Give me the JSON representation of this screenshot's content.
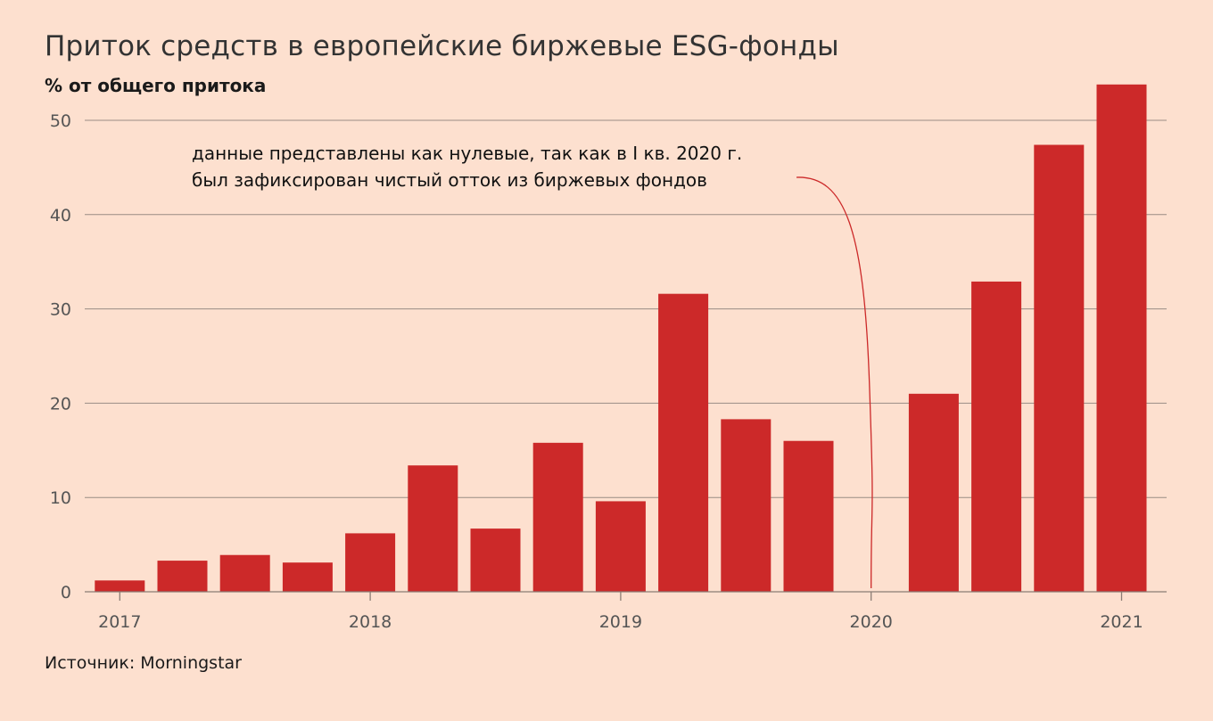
{
  "chart_data": {
    "type": "bar",
    "title": "Приток средств в европейские биржевые ESG-фонды",
    "subtitle": "% от общего притока",
    "source": "Источник: Morningstar",
    "ylim": [
      0,
      50
    ],
    "y_ticks": [
      0,
      10,
      20,
      30,
      40,
      50
    ],
    "grid": true,
    "x_year_labels": [
      "2017",
      "2018",
      "2019",
      "2020",
      "2021"
    ],
    "values": [
      1.2,
      3.3,
      3.9,
      3.1,
      6.2,
      13.4,
      6.7,
      15.8,
      9.6,
      31.6,
      18.3,
      16.0,
      0,
      21.0,
      32.9,
      47.4,
      53.8
    ],
    "bar_color": "#cc2929",
    "annotation": {
      "lines": [
        "данные представлены как нулевые, так как в I кв. 2020 г.",
        "был зафиксирован чистый отток из биржевых фондов"
      ],
      "points_to_bar": 12
    }
  }
}
